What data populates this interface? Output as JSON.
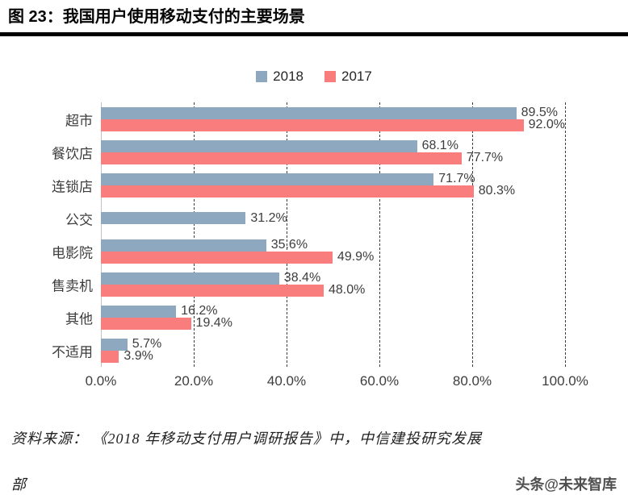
{
  "header": {
    "title": "图 23：我国用户使用移动支付的主要场景"
  },
  "legend": {
    "items": [
      {
        "label": "2018",
        "color": "#8EA9BF"
      },
      {
        "label": "2017",
        "color": "#FA7D7D"
      }
    ]
  },
  "chart_data": {
    "type": "bar",
    "orientation": "horizontal",
    "title": "我国用户使用移动支付的主要场景",
    "categories": [
      "超市",
      "餐饮店",
      "连锁店",
      "公交",
      "电影院",
      "售卖机",
      "其他",
      "不适用"
    ],
    "series": [
      {
        "name": "2018",
        "color": "#8EA9BF",
        "values": [
          89.5,
          68.1,
          71.7,
          31.2,
          35.6,
          38.4,
          16.2,
          5.7
        ]
      },
      {
        "name": "2017",
        "color": "#FA7D7D",
        "values": [
          92.0,
          77.7,
          80.3,
          null,
          49.9,
          48.0,
          19.4,
          3.9
        ]
      }
    ],
    "xlim": [
      0,
      100
    ],
    "xticks": [
      {
        "value": 0,
        "label": "0.0%"
      },
      {
        "value": 20,
        "label": "20.0%"
      },
      {
        "value": 40,
        "label": "40.0%"
      },
      {
        "value": 60,
        "label": "60.0%"
      },
      {
        "value": 80,
        "label": "80.0%"
      },
      {
        "value": 100,
        "label": "100.0%"
      }
    ],
    "grid": "dashed-vertical",
    "legend_position": "top",
    "value_label_format": "{value}%"
  },
  "footer": {
    "source_line1": "资料来源： 《2018 年移动支付用户调研报告》中，中信建投研究发展",
    "source_line2": "部",
    "watermark": "头条@未来智库"
  }
}
